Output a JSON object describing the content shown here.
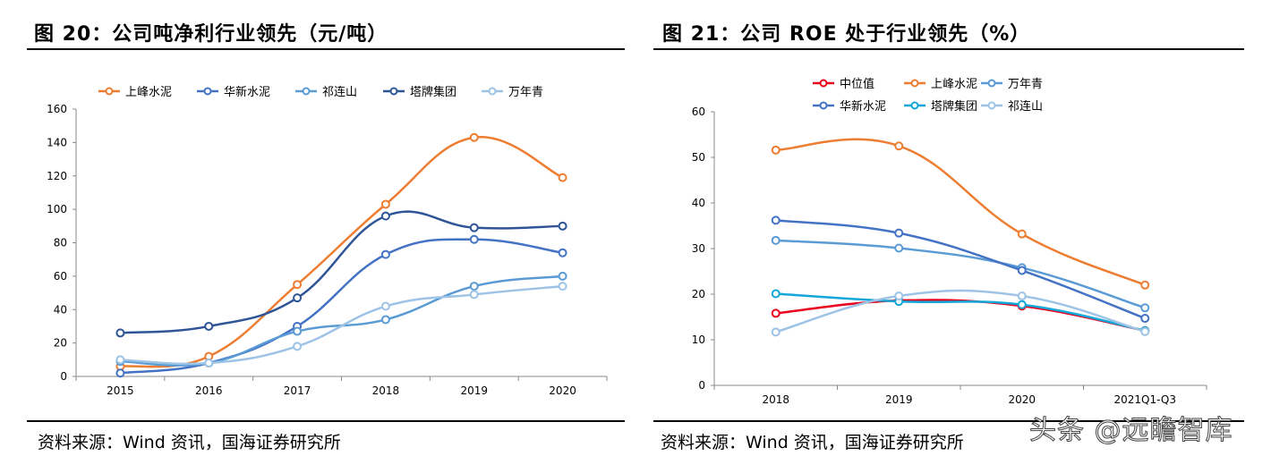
{
  "left": {
    "title": "图 20：公司吨净利行业领先（元/吨）",
    "source": "资料来源：Wind 资讯，国海证券研究所"
  },
  "right": {
    "title": "图 21：公司 ROE 处于行业领先（%）",
    "source": "资料来源：Wind 资讯，国海证券研究所"
  },
  "watermark": "头条 @远瞻智库",
  "chart_data": [
    {
      "type": "line",
      "title": "",
      "xlabel": "",
      "ylabel": "",
      "categories": [
        "2015",
        "2016",
        "2017",
        "2018",
        "2019",
        "2020"
      ],
      "ylim": [
        0,
        160
      ],
      "yticks": [
        0,
        20,
        40,
        60,
        80,
        100,
        120,
        140,
        160
      ],
      "grid": false,
      "legend_position": "top",
      "smooth": true,
      "series": [
        {
          "name": "上峰水泥",
          "color": "#ED7D31",
          "values": [
            6,
            12,
            55,
            103,
            143,
            119
          ]
        },
        {
          "name": "华新水泥",
          "color": "#4472C4",
          "values": [
            2,
            8,
            30,
            73,
            82,
            74
          ]
        },
        {
          "name": "祁连山",
          "color": "#5B9BD5",
          "values": [
            9,
            8,
            27,
            34,
            54,
            60
          ]
        },
        {
          "name": "塔牌集团",
          "color": "#2F5597",
          "values": [
            26,
            30,
            47,
            96,
            89,
            90
          ]
        },
        {
          "name": "万年青",
          "color": "#9DC3E6",
          "values": [
            10,
            8,
            18,
            42,
            49,
            54
          ]
        }
      ]
    },
    {
      "type": "line",
      "title": "",
      "xlabel": "",
      "ylabel": "",
      "categories": [
        "2018",
        "2019",
        "2020",
        "2021Q1-Q3"
      ],
      "ylim": [
        0,
        60
      ],
      "yticks": [
        0,
        10,
        20,
        30,
        40,
        50,
        60
      ],
      "grid": false,
      "legend_position": "top",
      "smooth": true,
      "series": [
        {
          "name": "中位值",
          "color": "#E8001C",
          "values": [
            15.8,
            18.6,
            17.4,
            12.0
          ]
        },
        {
          "name": "上峰水泥",
          "color": "#ED7D31",
          "values": [
            51.6,
            52.5,
            33.2,
            22.0
          ]
        },
        {
          "name": "万年青",
          "color": "#5B9BD5",
          "values": [
            31.8,
            30.1,
            25.8,
            17.0
          ]
        },
        {
          "name": "华新水泥",
          "color": "#4472C4",
          "values": [
            36.2,
            33.4,
            25.2,
            14.7
          ]
        },
        {
          "name": "塔牌集团",
          "color": "#13A7D8",
          "values": [
            20.1,
            18.4,
            17.7,
            12.0
          ]
        },
        {
          "name": "祁连山",
          "color": "#9DC3E6",
          "values": [
            11.7,
            19.6,
            19.6,
            11.8
          ]
        }
      ]
    }
  ]
}
